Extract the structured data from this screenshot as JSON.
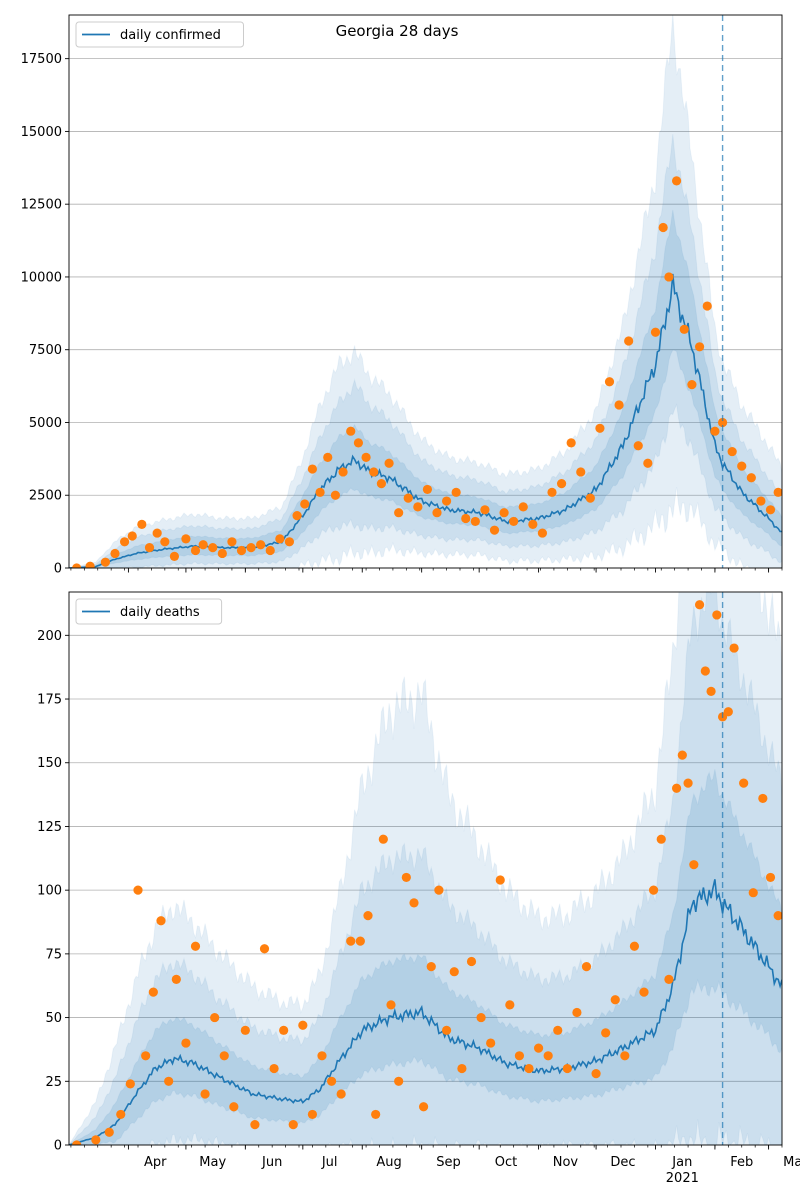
{
  "figure": {
    "title": "Georgia 28 days",
    "accent": "#1f77b4",
    "observed_color": "#ff7f0e",
    "grid": true
  },
  "chart_data": [
    {
      "type": "line",
      "title": "Georgia 28 days",
      "legend": {
        "label": "daily confirmed",
        "placement": "top-left"
      },
      "x_axis": {
        "type": "date",
        "range": [
          "2020-03-01",
          "2021-03-08"
        ],
        "tick_labels": [
          "Apr",
          "May",
          "Jun",
          "Jul",
          "Aug",
          "Sep",
          "Oct",
          "Nov",
          "Dec",
          "Jan\n2021",
          "Feb",
          "Mar"
        ]
      },
      "y_axis": {
        "range": [
          0,
          19000
        ],
        "ticks": [
          0,
          2500,
          5000,
          7500,
          10000,
          12500,
          15000,
          17500
        ]
      },
      "forecast_start": "2021-02-05",
      "model": {
        "x": [
          "2020-03-01",
          "2020-03-15",
          "2020-03-25",
          "2020-04-05",
          "2020-04-20",
          "2020-05-05",
          "2020-05-20",
          "2020-06-05",
          "2020-06-20",
          "2020-07-01",
          "2020-07-10",
          "2020-07-20",
          "2020-07-28",
          "2020-08-05",
          "2020-08-15",
          "2020-09-01",
          "2020-09-15",
          "2020-10-01",
          "2020-10-15",
          "2020-11-01",
          "2020-11-15",
          "2020-12-01",
          "2020-12-15",
          "2021-01-01",
          "2021-01-10",
          "2021-01-20",
          "2021-02-01",
          "2021-02-05",
          "2021-02-15",
          "2021-03-01",
          "2021-03-08"
        ],
        "y": [
          0,
          50,
          300,
          500,
          650,
          750,
          700,
          700,
          900,
          1800,
          2700,
          3400,
          3700,
          3300,
          3100,
          2300,
          2000,
          1900,
          1600,
          1700,
          2000,
          2700,
          4200,
          7000,
          9700,
          7600,
          4200,
          3600,
          2600,
          1700,
          1200
        ],
        "band50_width": [
          0,
          30,
          150,
          250,
          300,
          350,
          320,
          320,
          400,
          700,
          900,
          1100,
          1150,
          1000,
          900,
          650,
          550,
          520,
          480,
          500,
          600,
          800,
          1200,
          2000,
          2500,
          2000,
          1200,
          1100,
          850,
          650,
          550
        ],
        "band95_width": [
          0,
          80,
          350,
          550,
          650,
          700,
          650,
          650,
          800,
          1300,
          1800,
          2300,
          2600,
          2300,
          2000,
          1400,
          1200,
          1100,
          1000,
          1100,
          1300,
          1700,
          2600,
          4000,
          5000,
          4000,
          2500,
          2200,
          1800,
          1400,
          1200
        ],
        "band99_width": [
          0,
          150,
          600,
          900,
          1000,
          1100,
          1000,
          1000,
          1200,
          2000,
          2900,
          3600,
          3700,
          3300,
          2900,
          2100,
          1800,
          1700,
          1600,
          1700,
          2000,
          2700,
          4100,
          6500,
          9000,
          6500,
          4000,
          3500,
          3000,
          2500,
          2200
        ]
      },
      "observed": {
        "x": [
          "2020-03-05",
          "2020-03-12",
          "2020-03-20",
          "2020-03-25",
          "2020-03-30",
          "2020-04-03",
          "2020-04-08",
          "2020-04-12",
          "2020-04-16",
          "2020-04-20",
          "2020-04-25",
          "2020-05-01",
          "2020-05-06",
          "2020-05-10",
          "2020-05-15",
          "2020-05-20",
          "2020-05-25",
          "2020-05-30",
          "2020-06-04",
          "2020-06-09",
          "2020-06-14",
          "2020-06-19",
          "2020-06-24",
          "2020-06-28",
          "2020-07-02",
          "2020-07-06",
          "2020-07-10",
          "2020-07-14",
          "2020-07-18",
          "2020-07-22",
          "2020-07-26",
          "2020-07-30",
          "2020-08-03",
          "2020-08-07",
          "2020-08-11",
          "2020-08-15",
          "2020-08-20",
          "2020-08-25",
          "2020-08-30",
          "2020-09-04",
          "2020-09-09",
          "2020-09-14",
          "2020-09-19",
          "2020-09-24",
          "2020-09-29",
          "2020-10-04",
          "2020-10-09",
          "2020-10-14",
          "2020-10-19",
          "2020-10-24",
          "2020-10-29",
          "2020-11-03",
          "2020-11-08",
          "2020-11-13",
          "2020-11-18",
          "2020-11-23",
          "2020-11-28",
          "2020-12-03",
          "2020-12-08",
          "2020-12-13",
          "2020-12-18",
          "2020-12-23",
          "2020-12-28",
          "2021-01-01",
          "2021-01-05",
          "2021-01-08",
          "2021-01-12",
          "2021-01-16",
          "2021-01-20",
          "2021-01-24",
          "2021-01-28",
          "2021-02-01",
          "2021-02-05",
          "2021-02-10",
          "2021-02-15",
          "2021-02-20",
          "2021-02-25",
          "2021-03-02",
          "2021-03-06"
        ],
        "y": [
          0,
          60,
          200,
          500,
          900,
          1100,
          1500,
          700,
          1200,
          900,
          400,
          1000,
          600,
          800,
          700,
          500,
          900,
          600,
          700,
          800,
          600,
          1000,
          900,
          1800,
          2200,
          3400,
          2600,
          3800,
          2500,
          3300,
          4700,
          4300,
          3800,
          3300,
          2900,
          3600,
          1900,
          2400,
          2100,
          2700,
          1900,
          2300,
          2600,
          1700,
          1600,
          2000,
          1300,
          1900,
          1600,
          2100,
          1500,
          1200,
          2600,
          2900,
          4300,
          3300,
          2400,
          4800,
          6400,
          5600,
          7800,
          4200,
          3600,
          8100,
          11700,
          10000,
          13300,
          8200,
          6300,
          7600,
          9000,
          4700,
          5000,
          4000,
          3500,
          3100,
          2300,
          2000,
          2600
        ]
      }
    },
    {
      "type": "line",
      "title": "",
      "legend": {
        "label": "daily deaths",
        "placement": "top-left"
      },
      "x_axis": {
        "type": "date",
        "range": [
          "2020-03-01",
          "2021-03-08"
        ],
        "tick_labels": [
          "Apr",
          "May",
          "Jun",
          "Jul",
          "Aug",
          "Sep",
          "Oct",
          "Nov",
          "Dec",
          "Jan\n2021",
          "Feb",
          "Mar"
        ]
      },
      "y_axis": {
        "range": [
          0,
          217
        ],
        "ticks": [
          0,
          25,
          50,
          75,
          100,
          125,
          150,
          175,
          200
        ]
      },
      "forecast_start": "2021-02-05",
      "model": {
        "x": [
          "2020-03-01",
          "2020-03-15",
          "2020-03-25",
          "2020-04-05",
          "2020-04-15",
          "2020-04-25",
          "2020-05-05",
          "2020-05-20",
          "2020-06-05",
          "2020-06-20",
          "2020-07-01",
          "2020-07-10",
          "2020-07-20",
          "2020-08-01",
          "2020-08-15",
          "2020-09-01",
          "2020-09-15",
          "2020-10-01",
          "2020-10-15",
          "2020-11-01",
          "2020-11-15",
          "2020-12-01",
          "2020-12-15",
          "2021-01-01",
          "2021-01-10",
          "2021-01-20",
          "2021-02-01",
          "2021-02-05",
          "2021-02-15",
          "2021-03-01",
          "2021-03-08"
        ],
        "y": [
          0,
          3,
          8,
          20,
          30,
          34,
          32,
          26,
          20,
          18,
          17,
          22,
          33,
          45,
          50,
          52,
          42,
          38,
          32,
          29,
          30,
          33,
          38,
          45,
          62,
          95,
          100,
          95,
          85,
          70,
          62
        ],
        "band50_width": [
          0,
          3,
          8,
          12,
          15,
          16,
          15,
          13,
          11,
          10,
          10,
          12,
          16,
          20,
          22,
          22,
          19,
          17,
          15,
          14,
          14,
          16,
          18,
          22,
          28,
          40,
          45,
          42,
          38,
          32,
          30
        ],
        "band95_width": [
          0,
          8,
          18,
          28,
          35,
          38,
          35,
          30,
          26,
          24,
          24,
          28,
          40,
          55,
          62,
          62,
          52,
          46,
          40,
          36,
          36,
          40,
          46,
          56,
          72,
          110,
          120,
          110,
          100,
          85,
          80
        ],
        "band99_width": [
          0,
          14,
          30,
          45,
          55,
          60,
          55,
          48,
          42,
          38,
          38,
          45,
          65,
          95,
          120,
          125,
          95,
          80,
          68,
          60,
          60,
          66,
          75,
          95,
          130,
          180,
          190,
          175,
          160,
          140,
          130
        ]
      },
      "observed": {
        "x": [
          "2020-03-05",
          "2020-03-15",
          "2020-03-22",
          "2020-03-28",
          "2020-04-02",
          "2020-04-06",
          "2020-04-10",
          "2020-04-14",
          "2020-04-18",
          "2020-04-22",
          "2020-04-26",
          "2020-05-01",
          "2020-05-06",
          "2020-05-11",
          "2020-05-16",
          "2020-05-21",
          "2020-05-26",
          "2020-06-01",
          "2020-06-06",
          "2020-06-11",
          "2020-06-16",
          "2020-06-21",
          "2020-06-26",
          "2020-07-01",
          "2020-07-06",
          "2020-07-11",
          "2020-07-16",
          "2020-07-21",
          "2020-07-26",
          "2020-07-31",
          "2020-08-04",
          "2020-08-08",
          "2020-08-12",
          "2020-08-16",
          "2020-08-20",
          "2020-08-24",
          "2020-08-28",
          "2020-09-02",
          "2020-09-06",
          "2020-09-10",
          "2020-09-14",
          "2020-09-18",
          "2020-09-22",
          "2020-09-27",
          "2020-10-02",
          "2020-10-07",
          "2020-10-12",
          "2020-10-17",
          "2020-10-22",
          "2020-10-27",
          "2020-11-01",
          "2020-11-06",
          "2020-11-11",
          "2020-11-16",
          "2020-11-21",
          "2020-11-26",
          "2020-12-01",
          "2020-12-06",
          "2020-12-11",
          "2020-12-16",
          "2020-12-21",
          "2020-12-26",
          "2020-12-31",
          "2021-01-04",
          "2021-01-08",
          "2021-01-12",
          "2021-01-15",
          "2021-01-18",
          "2021-01-21",
          "2021-01-24",
          "2021-01-27",
          "2021-01-30",
          "2021-02-02",
          "2021-02-05",
          "2021-02-08",
          "2021-02-11",
          "2021-02-16",
          "2021-02-21",
          "2021-02-26",
          "2021-03-02",
          "2021-03-06"
        ],
        "y": [
          0,
          2,
          5,
          12,
          24,
          100,
          35,
          60,
          88,
          25,
          65,
          40,
          78,
          20,
          50,
          35,
          15,
          45,
          8,
          77,
          30,
          45,
          8,
          47,
          12,
          35,
          25,
          20,
          80,
          80,
          90,
          12,
          120,
          55,
          25,
          105,
          95,
          15,
          70,
          100,
          45,
          68,
          30,
          72,
          50,
          40,
          104,
          55,
          35,
          30,
          38,
          35,
          45,
          30,
          52,
          70,
          28,
          44,
          57,
          35,
          78,
          60,
          100,
          120,
          65,
          140,
          153,
          142,
          110,
          212,
          186,
          178,
          208,
          168,
          170,
          195,
          142,
          99,
          136,
          105,
          90
        ]
      }
    }
  ]
}
